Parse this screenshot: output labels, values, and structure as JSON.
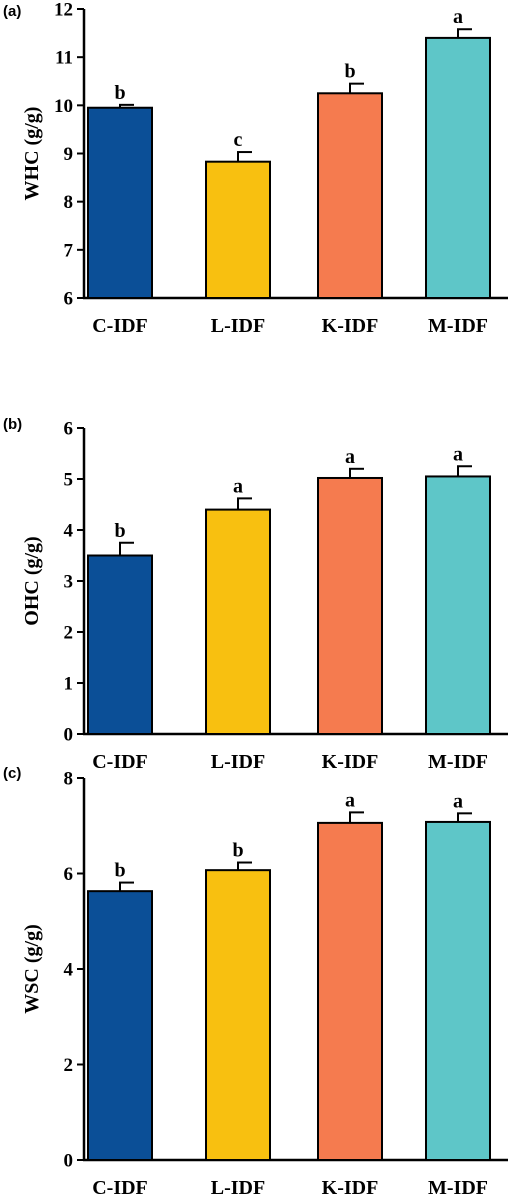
{
  "chart_data": [
    {
      "type": "bar",
      "panel": "(a)",
      "ylabel": "WHC (g/g)",
      "xlabel": "",
      "ylim": [
        6,
        12
      ],
      "yticks": [
        6,
        7,
        8,
        9,
        10,
        11,
        12
      ],
      "categories": [
        "C-IDF",
        "L-IDF",
        "K-IDF",
        "M-IDF"
      ],
      "values": [
        9.95,
        8.83,
        10.25,
        11.4
      ],
      "errors": [
        0.06,
        0.2,
        0.2,
        0.18
      ],
      "significance": [
        "b",
        "c",
        "b",
        "a"
      ],
      "colors": [
        "#0b4f97",
        "#f8c010",
        "#f57b4f",
        "#5ec6c8"
      ]
    },
    {
      "type": "bar",
      "panel": "(b)",
      "ylabel": "OHC (g/g)",
      "xlabel": "",
      "ylim": [
        0,
        6
      ],
      "yticks": [
        0,
        1,
        2,
        3,
        4,
        5,
        6
      ],
      "categories": [
        "C-IDF",
        "L-IDF",
        "K-IDF",
        "M-IDF"
      ],
      "values": [
        3.5,
        4.4,
        5.02,
        5.05
      ],
      "errors": [
        0.25,
        0.22,
        0.18,
        0.2
      ],
      "significance": [
        "b",
        "a",
        "a",
        "a"
      ],
      "colors": [
        "#0b4f97",
        "#f8c010",
        "#f57b4f",
        "#5ec6c8"
      ]
    },
    {
      "type": "bar",
      "panel": "(c)",
      "ylabel": "WSC (g/g)",
      "xlabel": "",
      "ylim": [
        0,
        8
      ],
      "yticks": [
        0,
        2,
        4,
        6,
        8
      ],
      "categories": [
        "C-IDF",
        "L-IDF",
        "K-IDF",
        "M-IDF"
      ],
      "values": [
        5.63,
        6.07,
        7.06,
        7.08
      ],
      "errors": [
        0.18,
        0.16,
        0.22,
        0.18
      ],
      "significance": [
        "b",
        "b",
        "a",
        "a"
      ],
      "colors": [
        "#0b4f97",
        "#f8c010",
        "#f57b4f",
        "#5ec6c8"
      ]
    }
  ]
}
